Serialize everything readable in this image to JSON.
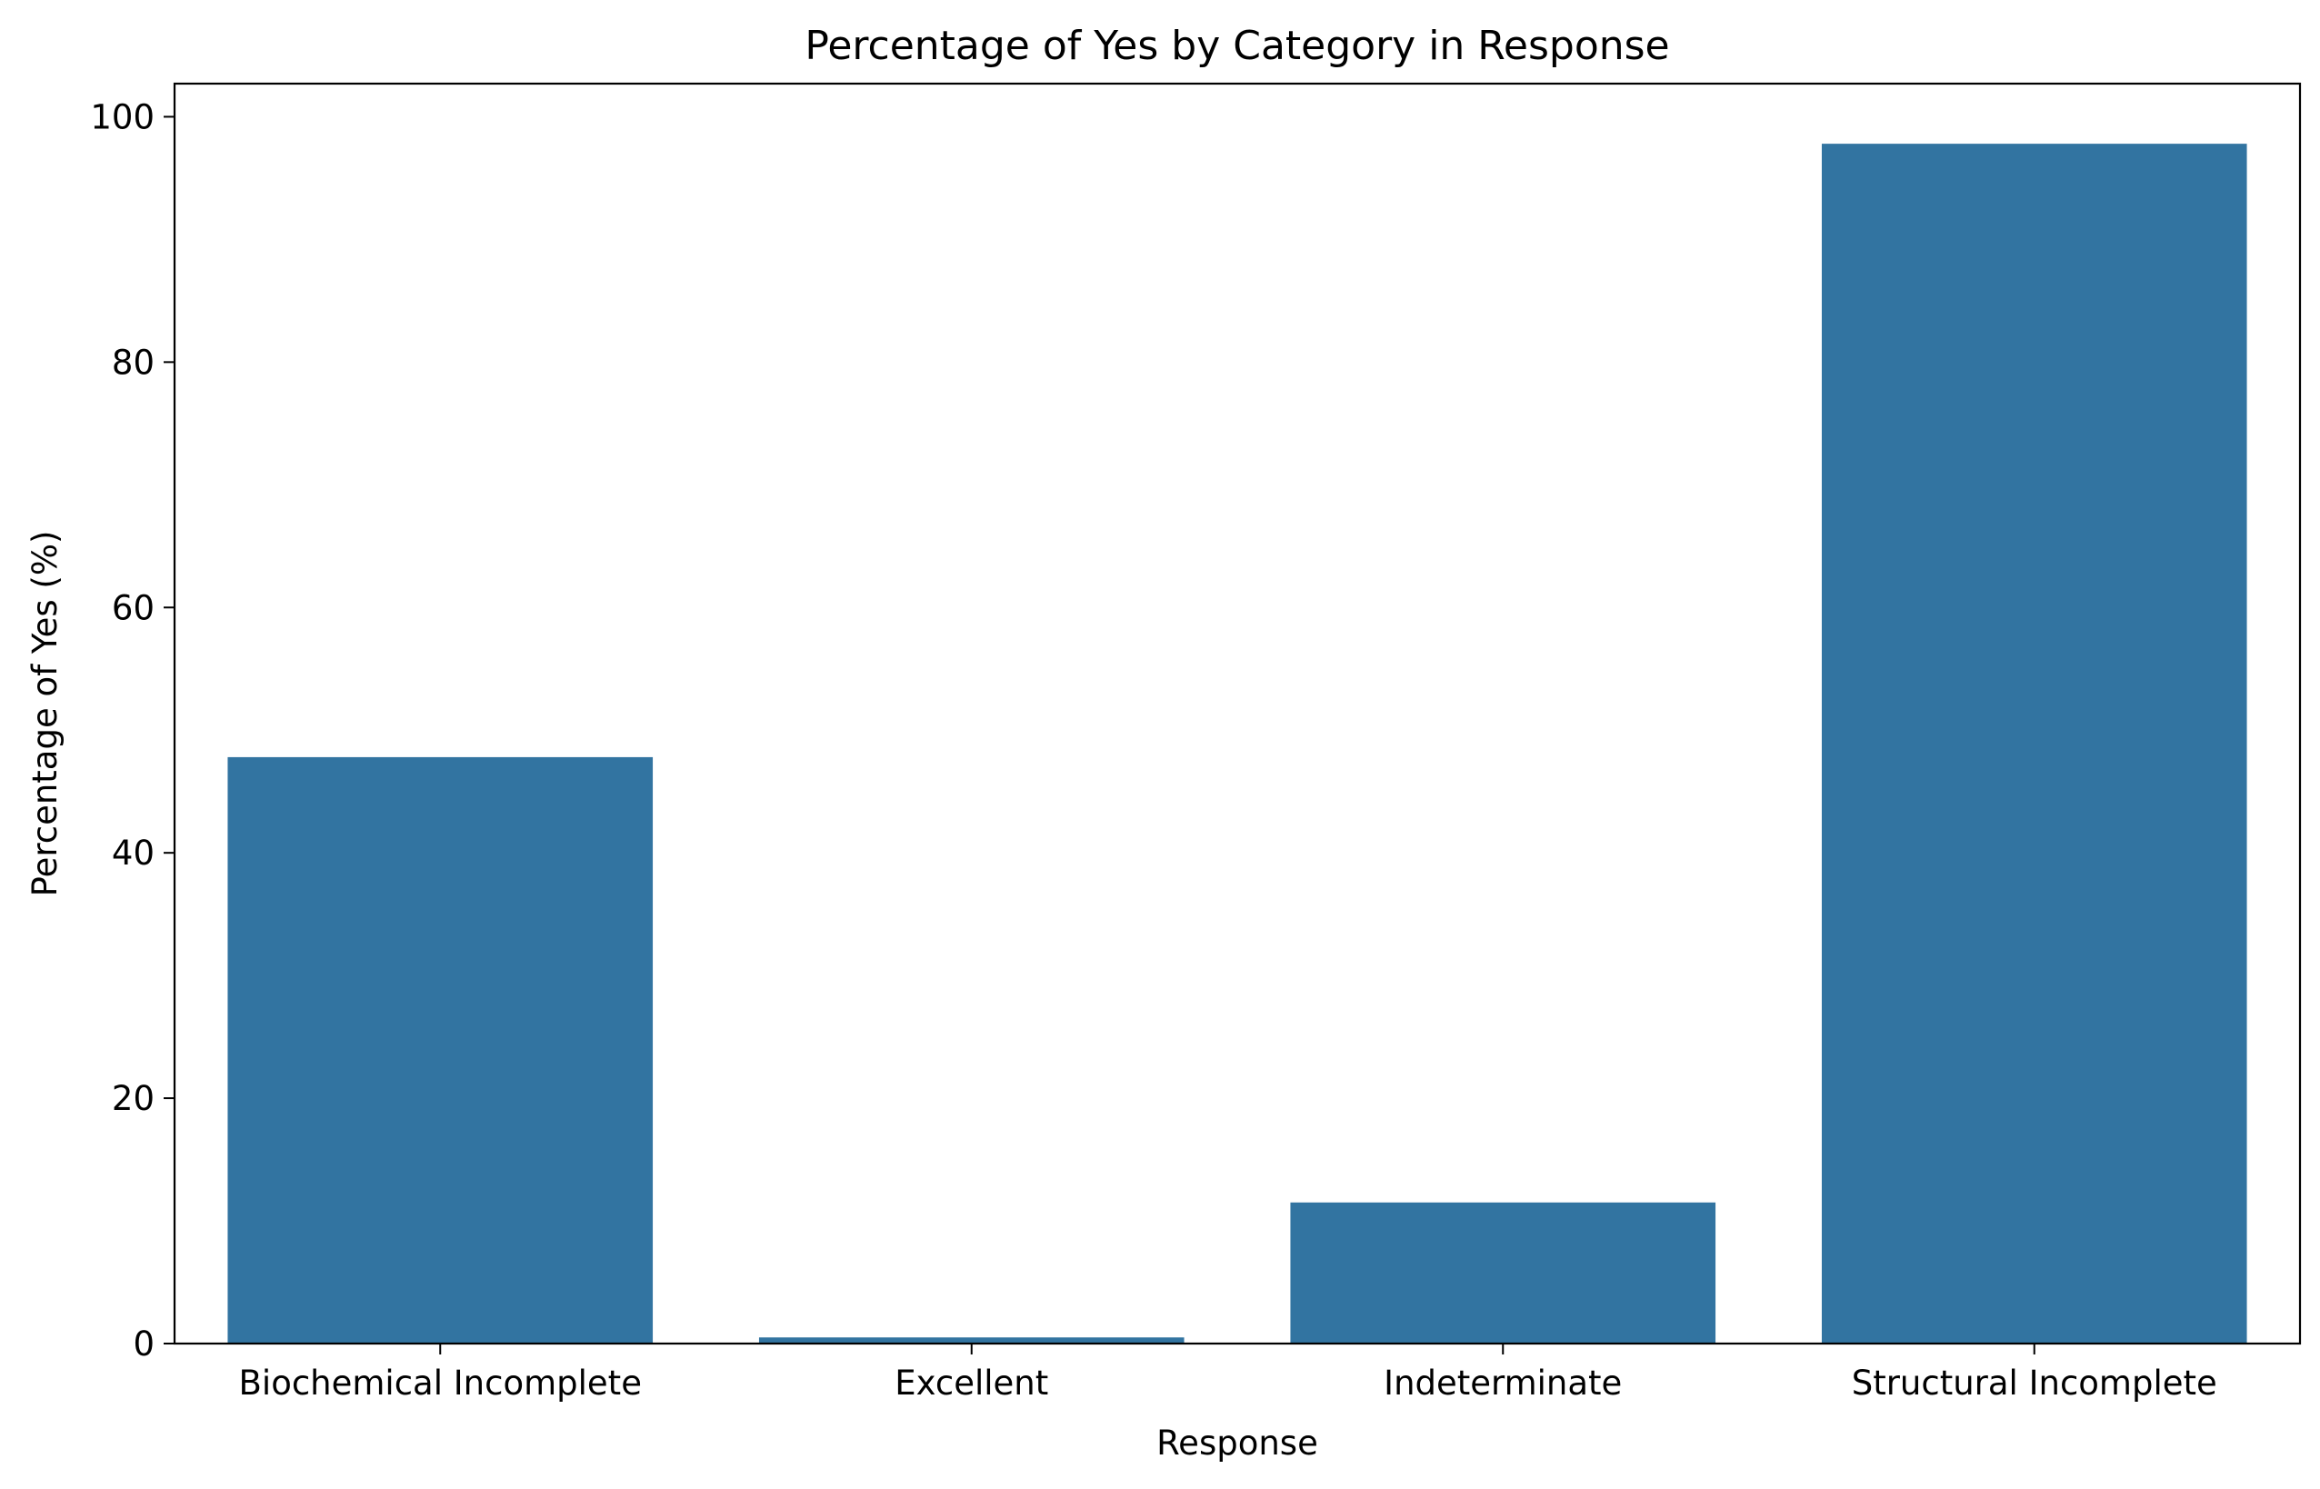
{
  "chart_data": {
    "type": "bar",
    "title": "Percentage of Yes by Category in Response",
    "xlabel": "Response",
    "ylabel": "Percentage of Yes (%)",
    "categories": [
      "Biochemical Incomplete",
      "Excellent",
      "Indeterminate",
      "Structural Incomplete"
    ],
    "values": [
      47.8,
      0.5,
      11.5,
      97.8
    ],
    "ylim": [
      0,
      102.7
    ],
    "yticks": [
      0,
      20,
      40,
      60,
      80,
      100
    ],
    "bar_color": "#3274a1",
    "grid": false,
    "legend": "none"
  }
}
